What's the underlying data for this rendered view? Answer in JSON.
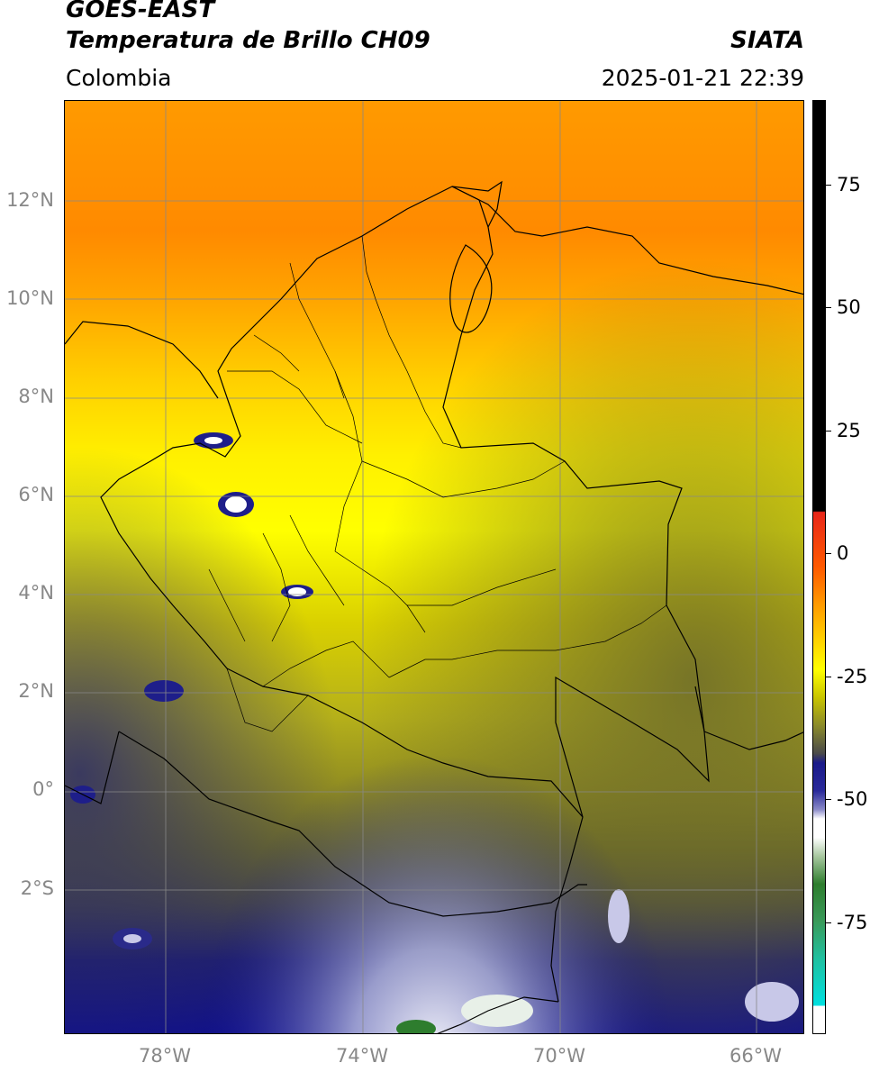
{
  "header": {
    "satellite": "GOES-EAST",
    "product": "Temperatura de Brillo CH09",
    "region": "Colombia",
    "brand": "SIATA",
    "datetime": "2025-01-21 22:39"
  },
  "map": {
    "lat_labels": [
      "12°N",
      "10°N",
      "8°N",
      "6°N",
      "4°N",
      "2°N",
      "0°",
      "2°S"
    ],
    "lon_labels": [
      "78°W",
      "74°W",
      "70°W",
      "66°W"
    ],
    "gridline_color": "#888888",
    "boundary_color": "#000000"
  },
  "colorbar": {
    "ticks": [
      "75",
      "50",
      "25",
      "0",
      "-25",
      "-50",
      "-75"
    ],
    "colors": {
      "black": "#000000",
      "red": "#e8261a",
      "orange": "#ff8c00",
      "yellow": "#ffff00",
      "olive": "#8a8a2a",
      "gray": "#4a4a4a",
      "navy": "#10108a",
      "white": "#ffffff",
      "green": "#2e7d2e",
      "cyan": "#00e0e0"
    }
  }
}
